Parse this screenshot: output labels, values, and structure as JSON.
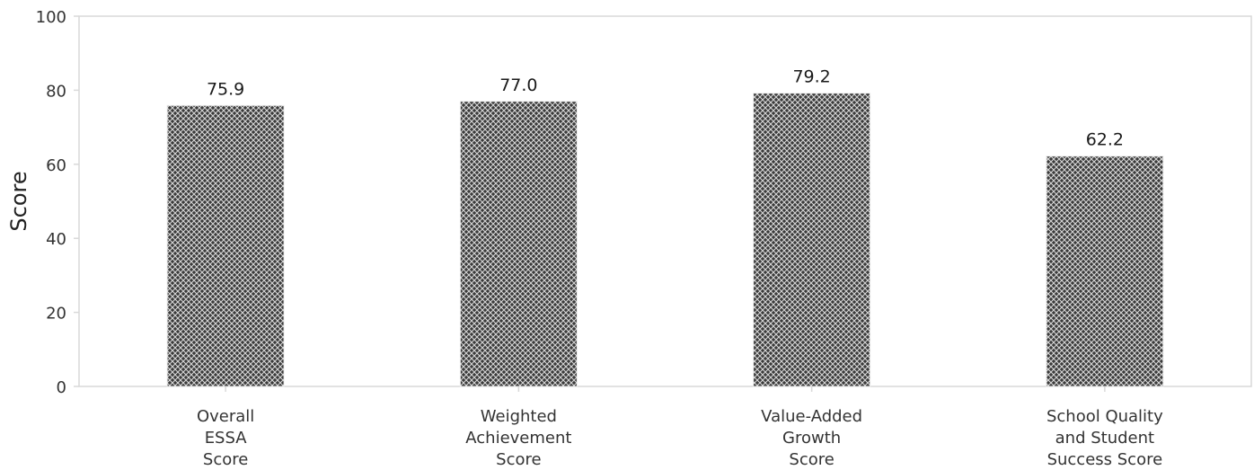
{
  "chart_data": {
    "type": "bar",
    "categories": [
      [
        "Overall",
        "ESSA",
        "Score"
      ],
      [
        "Weighted",
        "Achievement",
        "Score"
      ],
      [
        "Value-Added",
        "Growth",
        "Score"
      ],
      [
        "School Quality",
        "and Student",
        "Success Score"
      ]
    ],
    "values": [
      75.9,
      77.0,
      79.2,
      62.2
    ],
    "data_labels": [
      "75.9",
      "77.0",
      "79.2",
      "62.2"
    ],
    "title": "",
    "xlabel": "",
    "ylabel": "Score",
    "ylim": [
      0,
      100
    ],
    "yticks": [
      0,
      20,
      40,
      60,
      80,
      100
    ],
    "grid": false,
    "bar_fill": "crosshatch",
    "colors": {
      "bar_fill": "#3a3a3a",
      "bar_hatch": "#d8d8d8",
      "axis": "#d9d9d9",
      "text": "#333333"
    }
  }
}
